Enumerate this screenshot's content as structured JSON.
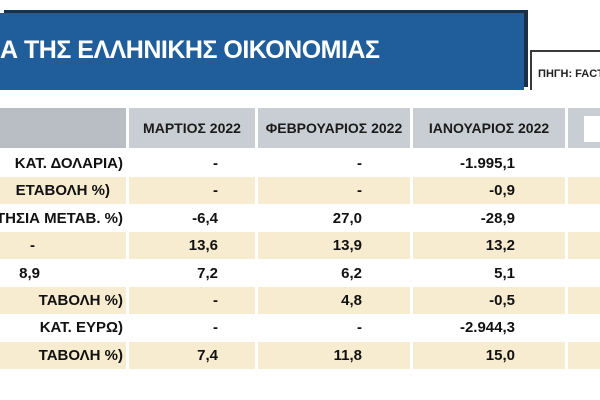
{
  "header": {
    "title": "Α ΤΗΣ ΕΛΛΗΝΙΚΗΣ ΟΙΚΟΝΟΜΙΑΣ",
    "source": "ΠΗΓΗ: FACTSE"
  },
  "table": {
    "columns": [
      "ΜΑΡΤΙΟΣ 2022",
      "ΦΕΒΡΟΥΑΡΙΟΣ 2022",
      "ΙΑΝΟΥΑΡΙΟΣ 2022"
    ],
    "rows": [
      [
        "ΚΑΤ. ΔΟΛΑΡΙΑ)",
        "-",
        "-",
        "-1.995,1"
      ],
      [
        "ΕΤΑΒΟΛΗ %)",
        "-",
        "-",
        "-0,9"
      ],
      [
        "ΕΤΗΣΙΑ ΜΕΤΑΒ. %)",
        "-6,4",
        "27,0",
        "-28,9"
      ],
      [
        "-",
        "13,6",
        "13,9",
        "13,2"
      ],
      [
        "8,9",
        "7,2",
        "6,2",
        "5,1"
      ],
      [
        "ΤΑΒΟΛΗ %)",
        "-",
        "4,8",
        "-0,5"
      ],
      [
        "ΚΑΤ. ΕΥΡΩ)",
        "-",
        "-",
        "-2.944,3"
      ],
      [
        "ΤΑΒΟΛΗ %)",
        "7,4",
        "11,8",
        "15,0"
      ]
    ]
  }
}
